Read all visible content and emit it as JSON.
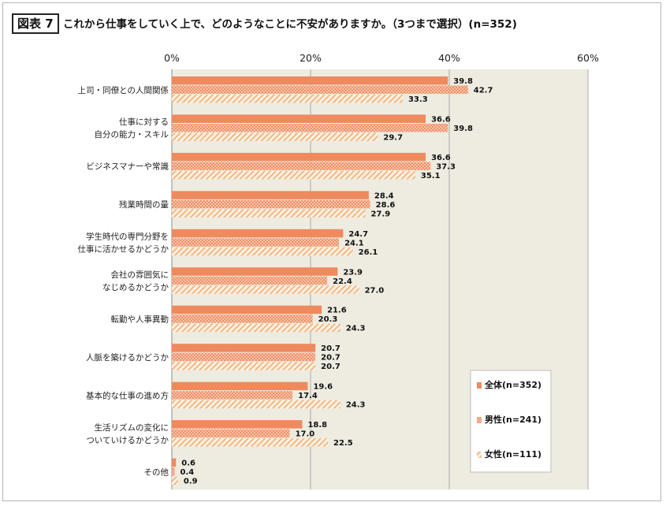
{
  "figure_label": "図表 7",
  "chart_data": {
    "type": "bar",
    "orientation": "horizontal",
    "title": "これから仕事をしていく上で、どのようなことに不安がありますか。（3つまで選択）(n=352)",
    "xlim": [
      0,
      60
    ],
    "x_ticks": [
      "0%",
      "20%",
      "40%",
      "60%"
    ],
    "grid": true,
    "legend_position": "bottom-right",
    "categories": [
      [
        "上司・同僚との人間関係"
      ],
      [
        "仕事に対する",
        "自分の能力・スキル"
      ],
      [
        "ビジネスマナーや常識"
      ],
      [
        "残業時間の量"
      ],
      [
        "学生時代の専門分野を",
        "仕事に活かせるかどうか"
      ],
      [
        "会社の雰囲気に",
        "なじめるかどうか"
      ],
      [
        "転勤や人事異動"
      ],
      [
        "人脈を築けるかどうか"
      ],
      [
        "基本的な仕事の進め方"
      ],
      [
        "生活リズムの変化に",
        "ついていけるかどうか"
      ],
      [
        "その他"
      ]
    ],
    "series": [
      {
        "name": "全体(n=352)",
        "values": [
          39.8,
          36.6,
          36.6,
          28.4,
          24.7,
          23.9,
          21.6,
          20.7,
          19.6,
          18.8,
          0.6
        ],
        "color": "#ee8a5e"
      },
      {
        "name": "男性(n=241)",
        "values": [
          42.7,
          39.8,
          37.3,
          28.6,
          24.1,
          22.4,
          20.3,
          20.7,
          17.4,
          17.0,
          0.4
        ],
        "color": "#f4a482"
      },
      {
        "name": "女性(n=111)",
        "values": [
          33.3,
          29.7,
          35.1,
          27.9,
          26.1,
          27.0,
          24.3,
          20.7,
          24.3,
          22.5,
          0.9
        ],
        "color": "#f5c090"
      }
    ],
    "plot_background": "#eeece1"
  }
}
